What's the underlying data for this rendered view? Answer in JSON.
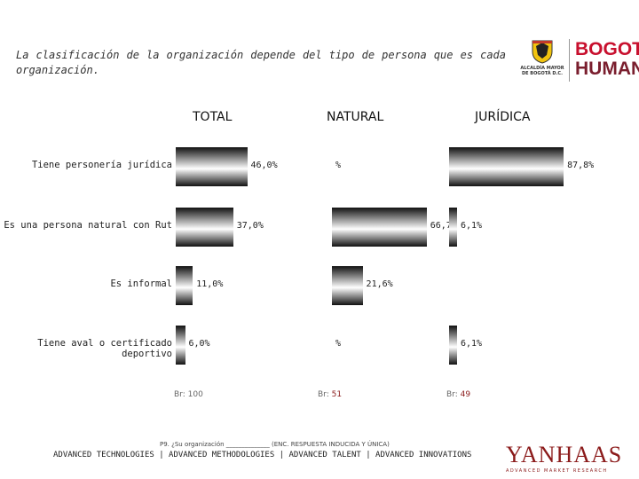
{
  "intro_text": "La clasificación de la organización depende del tipo de persona que es cada organización.",
  "logos": {
    "alcaldia_text": "ALCALDÍA MAYOR DE BOGOTÁ D.C.",
    "bogota_line1": "BOGOTÁ",
    "bogota_line2": "HUMANA",
    "firm_name": "YANHAAS",
    "firm_tagline": "ADVANCED MARKET RESEARCH"
  },
  "chart_data": {
    "type": "bar",
    "orientation": "horizontal",
    "categories": [
      "Tiene personería jurídica",
      "Es una persona natural con Rut",
      "Es informal",
      "Tiene aval o certificado deportivo"
    ],
    "series": [
      {
        "name": "TOTAL",
        "values": [
          46.0,
          37.0,
          11.0,
          6.0
        ],
        "labels": [
          "46,0%",
          "37,0%",
          "11,0%",
          "6,0%"
        ],
        "base_label": "Br:",
        "base_n": "100"
      },
      {
        "name": "NATURAL",
        "values": [
          0,
          66.7,
          21.6,
          0
        ],
        "labels": [
          "%",
          "66,7%",
          "21,6%",
          "%"
        ],
        "base_label": "Br:",
        "base_n": "51"
      },
      {
        "name": "JURÍDICA",
        "values": [
          87.8,
          6.1,
          0,
          6.1
        ],
        "labels": [
          "87,8%",
          "6,1%",
          "",
          "6,1%"
        ],
        "base_label": "Br:",
        "base_n": "49"
      }
    ],
    "xlim": [
      0,
      100
    ]
  },
  "footer": {
    "question": "P9. ¿Su organización ______________ (ENC. RESPUESTA INDUCIDA Y ÚNICA)",
    "advanced": "ADVANCED TECHNOLOGIES | ADVANCED METHODOLOGIES | ADVANCED TALENT | ADVANCED INNOVATIONS"
  },
  "colors": {
    "bar_dark": "#111111",
    "bar_light": "#ffffff",
    "accent": "#8b1a1a"
  }
}
